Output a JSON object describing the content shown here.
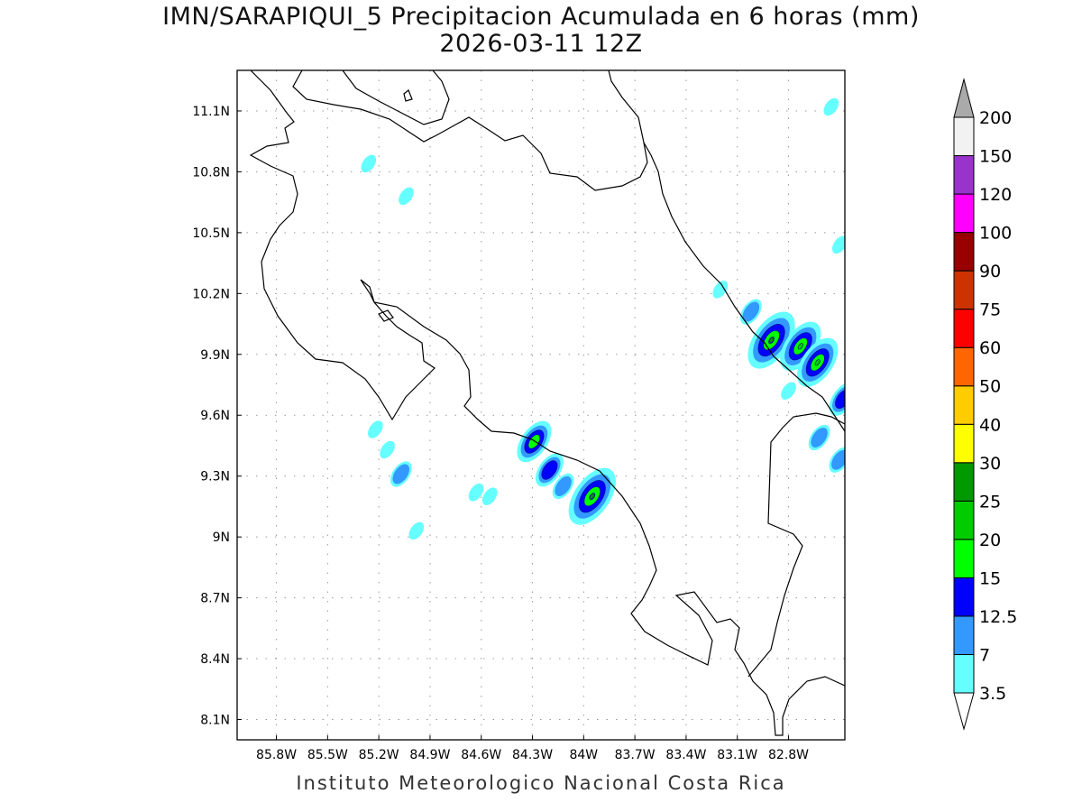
{
  "title": {
    "line1": "IMN/SARAPIQUI_5 Precipitacion Acumulada en 6 horas (mm)",
    "line2": "2026-03-11 12Z"
  },
  "footer": "Instituto Meteorologico Nacional Costa Rica",
  "map": {
    "lon_ticks": [
      "85.8W",
      "85.5W",
      "85.2W",
      "84.9W",
      "84.6W",
      "84.3W",
      "84W",
      "83.7W",
      "83.4W",
      "83.1W",
      "82.8W"
    ],
    "lon_values": [
      -85.8,
      -85.5,
      -85.2,
      -84.9,
      -84.6,
      -84.3,
      -84.0,
      -83.7,
      -83.4,
      -83.1,
      -82.8
    ],
    "lat_ticks": [
      "11.1N",
      "10.8N",
      "10.5N",
      "10.2N",
      "9.9N",
      "9.6N",
      "9.3N",
      "9N",
      "8.7N",
      "8.4N",
      "8.1N"
    ],
    "lat_values": [
      11.1,
      10.8,
      10.5,
      10.2,
      9.9,
      9.6,
      9.3,
      9.0,
      8.7,
      8.4,
      8.1
    ],
    "lon_range": [
      -86.03,
      -82.47
    ],
    "lat_range": [
      8.0,
      11.3
    ],
    "precip_cells": [
      {
        "lon": -84.29,
        "lat": 9.47,
        "max_mm": 15
      },
      {
        "lon": -84.2,
        "lat": 9.33,
        "max_mm": 12.5
      },
      {
        "lon": -83.95,
        "lat": 9.2,
        "max_mm": 25
      },
      {
        "lon": -82.9,
        "lat": 9.97,
        "max_mm": 25
      },
      {
        "lon": -82.73,
        "lat": 9.94,
        "max_mm": 20
      },
      {
        "lon": -82.63,
        "lat": 9.86,
        "max_mm": 20
      },
      {
        "lon": -83.02,
        "lat": 10.11,
        "max_mm": 7
      },
      {
        "lon": -83.2,
        "lat": 10.22,
        "max_mm": 3.5
      },
      {
        "lon": -82.48,
        "lat": 9.68,
        "max_mm": 12.5
      },
      {
        "lon": -82.62,
        "lat": 9.49,
        "max_mm": 7
      },
      {
        "lon": -82.5,
        "lat": 9.38,
        "max_mm": 7
      },
      {
        "lon": -85.15,
        "lat": 9.43,
        "max_mm": 3.5
      },
      {
        "lon": -85.07,
        "lat": 9.31,
        "max_mm": 7
      },
      {
        "lon": -84.63,
        "lat": 9.22,
        "max_mm": 3.5
      },
      {
        "lon": -84.55,
        "lat": 9.2,
        "max_mm": 3.5
      },
      {
        "lon": -85.22,
        "lat": 9.53,
        "max_mm": 3.5
      },
      {
        "lon": -84.12,
        "lat": 9.25,
        "max_mm": 7
      },
      {
        "lon": -82.55,
        "lat": 11.12,
        "max_mm": 3.5
      },
      {
        "lon": -82.5,
        "lat": 10.44,
        "max_mm": 3.5
      },
      {
        "lon": -85.04,
        "lat": 10.68,
        "max_mm": 3.5
      },
      {
        "lon": -85.26,
        "lat": 10.84,
        "max_mm": 3.5
      },
      {
        "lon": -84.98,
        "lat": 9.03,
        "max_mm": 3.5
      },
      {
        "lon": -82.8,
        "lat": 9.72,
        "max_mm": 3.5
      }
    ]
  },
  "colorbar": {
    "labels": [
      "3.5",
      "7",
      "12.5",
      "15",
      "20",
      "25",
      "30",
      "40",
      "50",
      "60",
      "75",
      "90",
      "100",
      "120",
      "150",
      "200"
    ],
    "colors": [
      "#66ffff",
      "#3399ff",
      "#0000ff",
      "#00ff00",
      "#00cc00",
      "#009900",
      "#ffff00",
      "#ffcc00",
      "#ff6600",
      "#ff0000",
      "#cc3300",
      "#990000",
      "#ff00ff",
      "#9933cc",
      "#f2f2f2"
    ],
    "over_color": "#aaaaaa",
    "under_color": "#ffffff"
  }
}
